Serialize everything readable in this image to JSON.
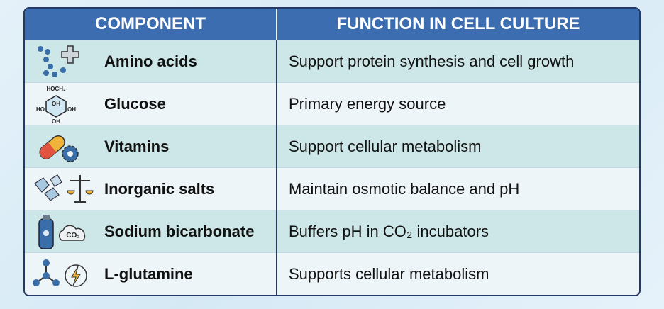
{
  "table": {
    "header": [
      "COMPONENT",
      "FUNCTION IN CELL CULTURE"
    ],
    "rows": [
      {
        "component": "Amino acids",
        "function": "Support protein synthesis and cell growth"
      },
      {
        "component": "Glucose",
        "function": "Primary energy source",
        "icon_labels": [
          "HOCH₂",
          "OH",
          "HO",
          "OH",
          "OH"
        ]
      },
      {
        "component": "Vitamins",
        "function": "Support cellular metabolism"
      },
      {
        "component": "Inorganic salts",
        "function": "Maintain osmotic balance and pH"
      },
      {
        "component": "Sodium bicarbonate",
        "function": "Buffers pH in CO₂ incubators",
        "icon_labels": [
          "CO₂"
        ]
      },
      {
        "component": "L-glutamine",
        "function": "Supports cellular metabolism"
      }
    ]
  }
}
